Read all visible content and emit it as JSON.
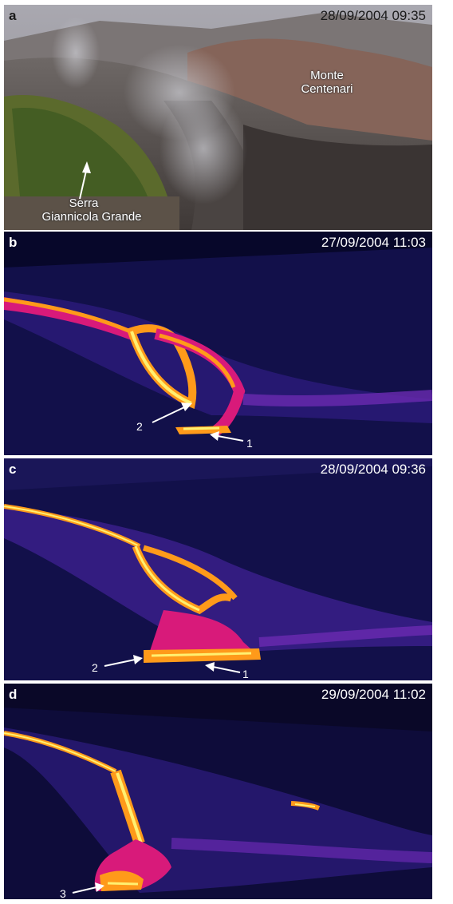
{
  "panels": [
    {
      "label": "a",
      "timestamp": "28/09/2004 09:35",
      "annotations": {
        "mountain": "Monte\nCentenari",
        "ridge_line1": "Serra",
        "ridge_line2": "Giannicola  Grande"
      }
    },
    {
      "label": "b",
      "timestamp": "27/09/2004 11:03",
      "arrows": [
        "2",
        "1"
      ]
    },
    {
      "label": "c",
      "timestamp": "28/09/2004 09:36",
      "arrows": [
        "2",
        "1"
      ]
    },
    {
      "label": "d",
      "timestamp": "29/09/2004 11:02",
      "arrows": [
        "3"
      ]
    }
  ],
  "colors": {
    "thermal_background": "#12104a",
    "thermal_hot": "#fff070",
    "thermal_warm": "#ff9a1a",
    "thermal_mid": "#d81a7a",
    "thermal_cool": "#6a2ab0",
    "photo_text": "#1a1a1a"
  }
}
